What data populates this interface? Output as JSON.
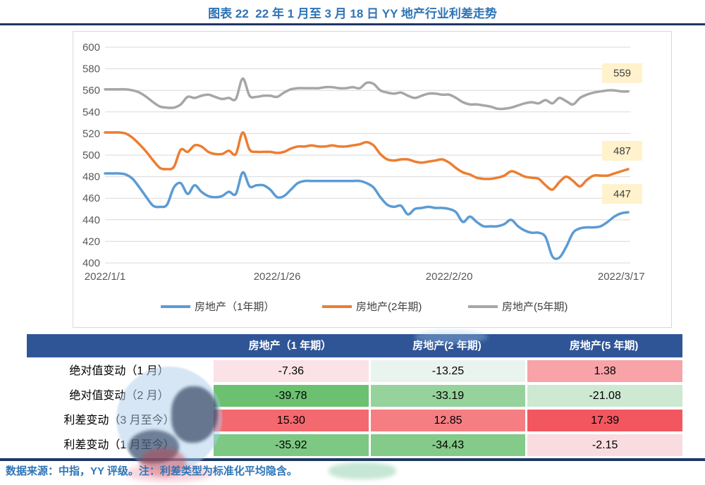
{
  "title": "图表 22  22 年 1 月至 3 月 18 日 YY 地产行业利差走势",
  "chart_data": {
    "type": "line",
    "title": "",
    "ylim": [
      400,
      600
    ],
    "y_ticks": [
      600,
      580,
      560,
      540,
      520,
      500,
      480,
      460,
      440,
      420,
      400
    ],
    "x_ticks": [
      "2022/1/1",
      "2022/1/26",
      "2022/2/20",
      "2022/3/17"
    ],
    "x_tick_days": [
      0,
      25,
      50,
      75
    ],
    "grid": true,
    "legend_position": "bottom",
    "end_label_bg": "#FFF2CC",
    "end_label_color": "#404040",
    "axis_label_color": "#595959",
    "gridline_color": "#D9D9D9",
    "series": [
      {
        "name": "房地产（1年期）",
        "color": "#5B9BD5",
        "end_label": "447",
        "values": [
          483,
          483,
          483,
          482,
          478,
          470,
          461,
          453,
          452,
          454,
          470,
          474,
          464,
          472,
          466,
          462,
          461,
          462,
          466,
          464,
          484,
          471,
          472,
          472,
          468,
          461,
          462,
          468,
          474,
          476,
          476,
          476,
          476,
          476,
          476,
          476,
          476,
          476,
          474,
          470,
          461,
          454,
          452,
          453,
          445,
          450,
          451,
          452,
          451,
          451,
          450,
          447,
          438,
          443,
          438,
          434,
          434,
          434,
          436,
          440,
          434,
          430,
          428,
          428,
          424,
          406,
          405,
          415,
          428,
          432,
          433,
          433,
          434,
          438,
          443,
          446,
          447
        ]
      },
      {
        "name": "房地产(2年期)",
        "color": "#ED7D31",
        "end_label": "487",
        "values": [
          521,
          521,
          521,
          520,
          516,
          510,
          503,
          495,
          488,
          487,
          489,
          505,
          503,
          509,
          508,
          503,
          501,
          501,
          504,
          501,
          521,
          505,
          503,
          503,
          503,
          502,
          503,
          506,
          508,
          508,
          509,
          508,
          508,
          509,
          508,
          508,
          509,
          510,
          512,
          509,
          501,
          496,
          495,
          496,
          496,
          494,
          493,
          494,
          495,
          496,
          493,
          488,
          484,
          482,
          479,
          478,
          478,
          479,
          481,
          485,
          483,
          480,
          479,
          478,
          472,
          468,
          475,
          480,
          476,
          471,
          477,
          481,
          481,
          481,
          483,
          485,
          487
        ]
      },
      {
        "name": "房地产(5年期)",
        "color": "#A6A6A6",
        "end_label": "559",
        "values": [
          561,
          561,
          561,
          561,
          560,
          558,
          554,
          549,
          545,
          544,
          544,
          547,
          554,
          553,
          555,
          556,
          554,
          552,
          553,
          552,
          571,
          555,
          554,
          555,
          555,
          554,
          558,
          561,
          562,
          562,
          562,
          562,
          563,
          563,
          562,
          562,
          563,
          562,
          567,
          566,
          560,
          558,
          557,
          558,
          555,
          553,
          555,
          557,
          557,
          556,
          556,
          553,
          549,
          547,
          547,
          546,
          545,
          543,
          543,
          544,
          546,
          548,
          549,
          548,
          551,
          548,
          553,
          550,
          547,
          553,
          556,
          558,
          559,
          560,
          560,
          559,
          559
        ]
      }
    ]
  },
  "table": {
    "header_bg": "#2F5597",
    "header": [
      "",
      "房地产（1 年期）",
      "房地产(2 年期)",
      "房地产(5 年期)"
    ],
    "rows": [
      {
        "label": "绝对值变动（1 月）",
        "values": [
          "-7.36",
          "-13.25",
          "1.38"
        ],
        "colors": [
          "#FBE2E6",
          "#EAF4EE",
          "#F8A3A8"
        ]
      },
      {
        "label": "绝对值变动（2 月）",
        "values": [
          "-39.78",
          "-33.19",
          "-21.08"
        ],
        "colors": [
          "#6BC170",
          "#96D29B",
          "#CDE9D1"
        ]
      },
      {
        "label": "利差变动（3 月至今）",
        "values": [
          "15.30",
          "12.85",
          "17.39"
        ],
        "colors": [
          "#F4696F",
          "#F57E83",
          "#F2575F"
        ]
      },
      {
        "label": "利差变动（1 月至今）",
        "values": [
          "-35.92",
          "-34.43",
          "-2.15"
        ],
        "colors": [
          "#7DC883",
          "#84CB89",
          "#F8DCE0"
        ]
      }
    ]
  },
  "footer": {
    "source_note": "数据来源：中指，YY 评级。注：利差类型为标准化平均隐含。"
  }
}
